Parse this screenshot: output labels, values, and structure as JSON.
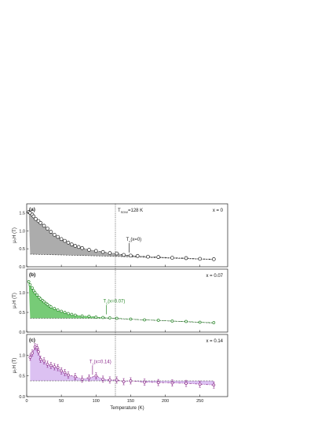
{
  "chart_data": [
    {
      "type": "scatter",
      "panel_label": "(a)",
      "composition_label": "x = 0",
      "color": "#222222",
      "fill_color": "#9e9e9e",
      "vline": {
        "x": 128,
        "label_main": "T",
        "label_sub": "SDW",
        "label_rest": "=128 K"
      },
      "annotation": {
        "x": 148,
        "text_main": "T",
        "text_sub": "c",
        "text_rest": "(x=0)"
      },
      "baseline": [
        [
          5,
          0.35
        ],
        [
          125,
          0.29
        ],
        [
          270,
          0.2
        ]
      ],
      "xlim": [
        0,
        290
      ],
      "ylim": [
        0,
        1.75
      ],
      "yticks": [
        0.0,
        0.5,
        1.0,
        1.5
      ],
      "ylabel": "μ₀H (T)",
      "x": [
        3,
        5,
        8,
        10,
        13,
        17,
        20,
        25,
        30,
        35,
        40,
        45,
        50,
        55,
        60,
        65,
        70,
        75,
        80,
        90,
        100,
        110,
        120,
        130,
        140,
        150,
        160,
        175,
        190,
        210,
        230,
        250,
        270
      ],
      "y": [
        1.52,
        1.5,
        1.45,
        1.4,
        1.33,
        1.27,
        1.22,
        1.14,
        1.06,
        0.97,
        0.89,
        0.83,
        0.77,
        0.72,
        0.67,
        0.62,
        0.58,
        0.55,
        0.52,
        0.47,
        0.44,
        0.41,
        0.38,
        0.37,
        0.33,
        0.31,
        0.3,
        0.28,
        0.27,
        0.25,
        0.24,
        0.22,
        0.21
      ]
    },
    {
      "type": "scatter",
      "panel_label": "(b)",
      "composition_label": "x = 0.07",
      "color": "#2e8b2e",
      "fill_color": "#5fc25f",
      "annotation": {
        "x": 115,
        "text_main": "T",
        "text_sub": "c",
        "text_rest": "(x=0.07)"
      },
      "baseline": [
        [
          5,
          0.35
        ],
        [
          120,
          0.35
        ],
        [
          270,
          0.23
        ]
      ],
      "xlim": [
        0,
        290
      ],
      "ylim": [
        0,
        1.6
      ],
      "yticks": [
        0.0,
        0.5,
        1.0
      ],
      "ylabel": "μ₀H (T)",
      "x": [
        3,
        5,
        8,
        10,
        12,
        15,
        18,
        20,
        23,
        25,
        28,
        30,
        33,
        35,
        40,
        45,
        50,
        55,
        60,
        65,
        70,
        80,
        90,
        100,
        110,
        120,
        130,
        150,
        170,
        190,
        210,
        230,
        250,
        270
      ],
      "y": [
        1.28,
        1.2,
        1.12,
        1.05,
        1.0,
        0.94,
        0.88,
        0.84,
        0.8,
        0.77,
        0.73,
        0.7,
        0.66,
        0.64,
        0.6,
        0.56,
        0.53,
        0.5,
        0.47,
        0.45,
        0.43,
        0.41,
        0.4,
        0.38,
        0.37,
        0.36,
        0.35,
        0.33,
        0.31,
        0.3,
        0.28,
        0.27,
        0.25,
        0.24
      ]
    },
    {
      "type": "scatter",
      "panel_label": "(c)",
      "composition_label": "x = 0.14",
      "color": "#8b2b8b",
      "fill_color": "#d6b6f0",
      "annotation": {
        "x": 95,
        "text_main": "T",
        "text_sub": "c",
        "text_rest": "(x=0.14)"
      },
      "baseline": [
        [
          5,
          0.38
        ],
        [
          270,
          0.38
        ]
      ],
      "xlim": [
        0,
        290
      ],
      "ylim": [
        0,
        1.5
      ],
      "yticks": [
        0.0,
        0.5,
        1.0
      ],
      "ylabel": "μ₀H (T)",
      "xlabel": "Temperature (K)",
      "xticks": [
        0,
        50,
        100,
        150,
        200,
        250
      ],
      "x": [
        5,
        8,
        12,
        15,
        17,
        20,
        25,
        30,
        35,
        40,
        45,
        50,
        55,
        60,
        70,
        80,
        90,
        100,
        110,
        120,
        130,
        140,
        150,
        170,
        190,
        210,
        230,
        250,
        270
      ],
      "y": [
        0.95,
        1.05,
        1.2,
        1.18,
        1.08,
        0.9,
        0.86,
        0.78,
        0.75,
        0.72,
        0.7,
        0.62,
        0.58,
        0.52,
        0.48,
        0.42,
        0.45,
        0.5,
        0.42,
        0.4,
        0.4,
        0.36,
        0.38,
        0.35,
        0.34,
        0.33,
        0.32,
        0.3,
        0.28
      ]
    }
  ]
}
